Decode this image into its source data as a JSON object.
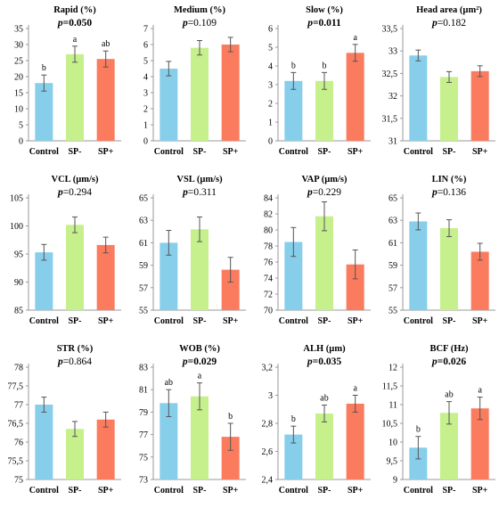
{
  "colors": {
    "Control": "#87ceeb",
    "SP-": "#c5f08c",
    "SP+": "#fa7b5e",
    "error_bar": "#555555",
    "axis": "#999999"
  },
  "chart_data": [
    {
      "type": "bar",
      "title": "Rapid (%)",
      "p_label": "p",
      "p_value": "=0.050",
      "p_bold": true,
      "categories": [
        "Control",
        "SP-",
        "SP+"
      ],
      "values": [
        18,
        27,
        25.5
      ],
      "errors": [
        2.5,
        2.5,
        2.5
      ],
      "letters": [
        "b",
        "a",
        "ab"
      ],
      "ylim": [
        0,
        35
      ],
      "yticks": [
        0,
        5,
        10,
        15,
        20,
        25,
        30,
        35
      ],
      "ytick_labels": [
        "0",
        "5",
        "10",
        "15",
        "20",
        "25",
        "30",
        "35"
      ]
    },
    {
      "type": "bar",
      "title": "Medium (%)",
      "p_label": "p",
      "p_value": "=0.109",
      "p_bold": false,
      "categories": [
        "Control",
        "SP-",
        "SP+"
      ],
      "values": [
        4.5,
        5.8,
        6.0
      ],
      "errors": [
        0.45,
        0.45,
        0.45
      ],
      "letters": [
        "",
        "",
        ""
      ],
      "ylim": [
        0,
        7
      ],
      "yticks": [
        0,
        1,
        2,
        3,
        4,
        5,
        6,
        7
      ],
      "ytick_labels": [
        "0",
        "1",
        "2",
        "3",
        "4",
        "5",
        "6",
        "7"
      ]
    },
    {
      "type": "bar",
      "title": "Slow (%)",
      "p_label": "p",
      "p_value": "=0.011",
      "p_bold": true,
      "categories": [
        "Control",
        "SP-",
        "SP+"
      ],
      "values": [
        3.2,
        3.2,
        4.7
      ],
      "errors": [
        0.45,
        0.45,
        0.45
      ],
      "letters": [
        "b",
        "b",
        "a"
      ],
      "ylim": [
        0,
        6
      ],
      "yticks": [
        0,
        1,
        2,
        3,
        4,
        5,
        6
      ],
      "ytick_labels": [
        "0",
        "1",
        "2",
        "3",
        "4",
        "5",
        "6"
      ]
    },
    {
      "type": "bar",
      "title": "Head area (µm²)",
      "p_label": "p",
      "p_value": "=0.182",
      "p_bold": false,
      "categories": [
        "Control",
        "SP-",
        "SP+"
      ],
      "values": [
        32.9,
        32.42,
        32.55
      ],
      "errors": [
        0.12,
        0.12,
        0.12
      ],
      "letters": [
        "",
        "",
        ""
      ],
      "ylim": [
        31,
        33.5
      ],
      "yticks": [
        31,
        31.5,
        32,
        32.5,
        33,
        33.5
      ],
      "ytick_labels": [
        "31",
        "31,5",
        "32",
        "32,5",
        "33",
        "33,5"
      ]
    },
    {
      "type": "bar",
      "title": "VCL (µm/s)",
      "p_label": "p",
      "p_value": "=0.294",
      "p_bold": false,
      "categories": [
        "Control",
        "SP-",
        "SP+"
      ],
      "values": [
        95.3,
        100.2,
        96.6
      ],
      "errors": [
        1.4,
        1.4,
        1.4
      ],
      "letters": [
        "",
        "",
        ""
      ],
      "ylim": [
        85,
        105
      ],
      "yticks": [
        85,
        90,
        95,
        100,
        105
      ],
      "ytick_labels": [
        "85",
        "90",
        "95",
        "100",
        "105"
      ]
    },
    {
      "type": "bar",
      "title": "VSL (µm/s)",
      "p_label": "p",
      "p_value": "=0.311",
      "p_bold": false,
      "categories": [
        "Control",
        "SP-",
        "SP+"
      ],
      "values": [
        61.0,
        62.2,
        58.6
      ],
      "errors": [
        1.1,
        1.1,
        1.1
      ],
      "letters": [
        "",
        "",
        ""
      ],
      "ylim": [
        55,
        65
      ],
      "yticks": [
        55,
        57,
        59,
        61,
        63,
        65
      ],
      "ytick_labels": [
        "55",
        "57",
        "59",
        "61",
        "63",
        "65"
      ]
    },
    {
      "type": "bar",
      "title": "VAP (µm/s)",
      "p_label": "p",
      "p_value": "=0.229",
      "p_bold": false,
      "categories": [
        "Control",
        "SP-",
        "SP+"
      ],
      "values": [
        78.5,
        81.7,
        75.7
      ],
      "errors": [
        1.8,
        1.8,
        1.8
      ],
      "letters": [
        "",
        "",
        ""
      ],
      "ylim": [
        70,
        84
      ],
      "yticks": [
        70,
        72,
        74,
        76,
        78,
        80,
        82,
        84
      ],
      "ytick_labels": [
        "70",
        "72",
        "74",
        "76",
        "78",
        "80",
        "82",
        "84"
      ]
    },
    {
      "type": "bar",
      "title": "LIN (%)",
      "p_label": "p",
      "p_value": "=0.136",
      "p_bold": false,
      "categories": [
        "Control",
        "SP-",
        "SP+"
      ],
      "values": [
        62.9,
        62.3,
        60.2
      ],
      "errors": [
        0.75,
        0.75,
        0.75
      ],
      "letters": [
        "",
        "",
        ""
      ],
      "ylim": [
        55,
        65
      ],
      "yticks": [
        55,
        57,
        59,
        61,
        63,
        65
      ],
      "ytick_labels": [
        "55",
        "57",
        "59",
        "61",
        "63",
        "65"
      ]
    },
    {
      "type": "bar",
      "title": "STR (%)",
      "p_label": "p",
      "p_value": "=0.864",
      "p_bold": false,
      "categories": [
        "Control",
        "SP-",
        "SP+"
      ],
      "values": [
        77.0,
        76.35,
        76.6
      ],
      "errors": [
        0.2,
        0.2,
        0.2
      ],
      "letters": [
        "",
        "",
        ""
      ],
      "ylim": [
        75,
        78
      ],
      "yticks": [
        75,
        75.5,
        76,
        76.5,
        77,
        77.5,
        78
      ],
      "ytick_labels": [
        "75",
        "75,5",
        "76",
        "76,5",
        "77",
        "77,5",
        "78"
      ]
    },
    {
      "type": "bar",
      "title": "WOB (%)",
      "p_label": "p",
      "p_value": "=0.029",
      "p_bold": true,
      "categories": [
        "Control",
        "SP-",
        "SP+"
      ],
      "values": [
        79.8,
        80.4,
        76.8
      ],
      "errors": [
        1.2,
        1.2,
        1.2
      ],
      "letters": [
        "ab",
        "a",
        "b"
      ],
      "ylim": [
        73,
        83
      ],
      "yticks": [
        73,
        75,
        77,
        79,
        81,
        83
      ],
      "ytick_labels": [
        "73",
        "75",
        "77",
        "79",
        "81",
        "83"
      ]
    },
    {
      "type": "bar",
      "title": "ALH (µm)",
      "p_label": "p",
      "p_value": "=0.035",
      "p_bold": true,
      "categories": [
        "Control",
        "SP-",
        "SP+"
      ],
      "values": [
        2.72,
        2.87,
        2.94
      ],
      "errors": [
        0.06,
        0.06,
        0.06
      ],
      "letters": [
        "b",
        "ab",
        "a"
      ],
      "ylim": [
        2.4,
        3.2
      ],
      "yticks": [
        2.4,
        2.6,
        2.8,
        3.0,
        3.2
      ],
      "ytick_labels": [
        "2,4",
        "2,6",
        "2,8",
        "3",
        "3,2"
      ]
    },
    {
      "type": "bar",
      "title": "BCF (Hz)",
      "p_label": "p",
      "p_value": "=0.026",
      "p_bold": true,
      "categories": [
        "Control",
        "SP-",
        "SP+"
      ],
      "values": [
        9.85,
        10.78,
        10.9
      ],
      "errors": [
        0.3,
        0.3,
        0.3
      ],
      "letters": [
        "b",
        "ab",
        "a"
      ],
      "ylim": [
        9,
        12
      ],
      "yticks": [
        9,
        9.5,
        10,
        10.5,
        11,
        11.5,
        12
      ],
      "ytick_labels": [
        "9",
        "9,5",
        "10",
        "10,5",
        "11",
        "11,5",
        "12"
      ]
    }
  ]
}
